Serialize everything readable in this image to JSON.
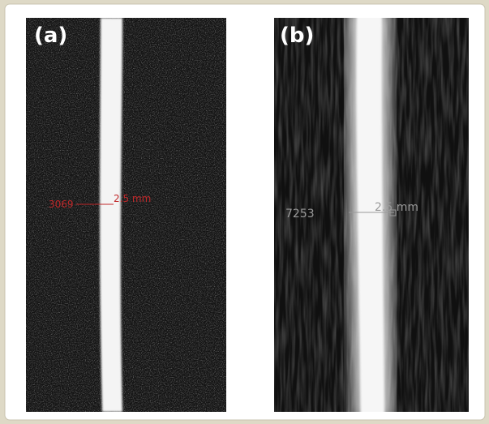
{
  "panels": [
    {
      "label": "(a)",
      "measure": {
        "id": "3069",
        "length": "2.5 mm"
      }
    },
    {
      "label": "(b)",
      "measure": {
        "id": "7253",
        "length": "2.5 mm"
      }
    }
  ]
}
